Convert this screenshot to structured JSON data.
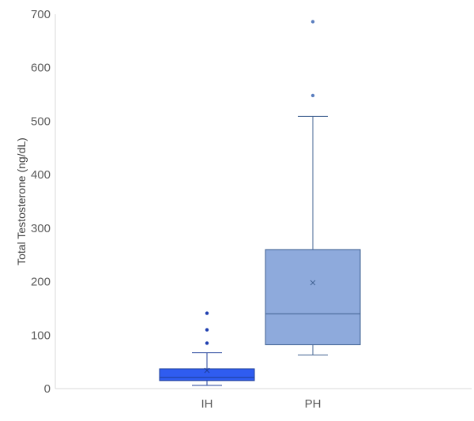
{
  "chart_data": {
    "type": "box",
    "title": "",
    "xlabel": "",
    "ylabel": "Total Testosterone (ng/dL)",
    "ylim": [
      0,
      700
    ],
    "yticks": [
      0,
      100,
      200,
      300,
      400,
      500,
      600,
      700
    ],
    "grid": false,
    "legend": "none",
    "categories": [
      "IH",
      "PH"
    ],
    "series": [
      {
        "category": "IH",
        "color": "#2f5cf0",
        "stroke": "#1f3f99",
        "whisker_low": 6,
        "q1": 15,
        "median": 21,
        "q3": 37,
        "whisker_high": 67,
        "mean": 34,
        "outliers": [
          85,
          110,
          141
        ]
      },
      {
        "category": "PH",
        "color": "#8eaadc",
        "stroke": "#3e5f8f",
        "whisker_low": 63,
        "q1": 82,
        "median": 140,
        "q3": 260,
        "whisker_high": 509,
        "mean": 198,
        "outliers": [
          548,
          686
        ]
      }
    ]
  }
}
